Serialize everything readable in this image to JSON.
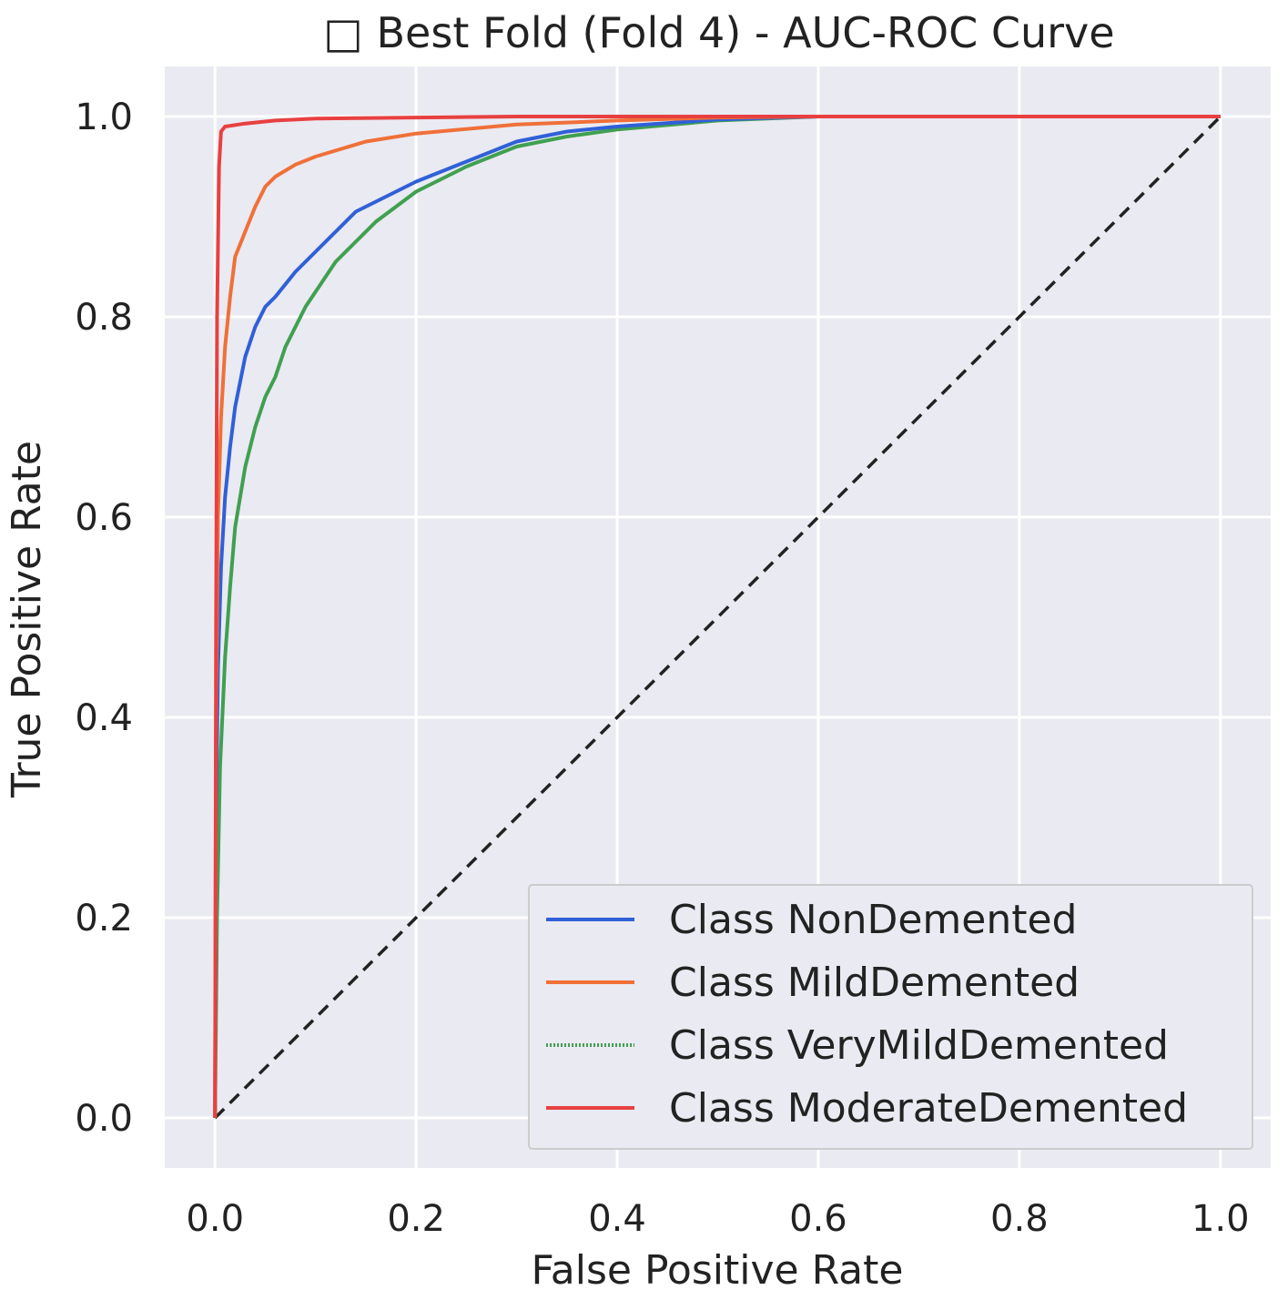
{
  "chart_data": {
    "type": "line",
    "title": "□ Best Fold (Fold 4) - AUC-ROC Curve",
    "xlabel": "False Positive Rate",
    "ylabel": "True Positive Rate",
    "xlim": [
      -0.05,
      1.05
    ],
    "ylim": [
      -0.05,
      1.05
    ],
    "xticks": [
      0.0,
      0.2,
      0.4,
      0.6,
      0.8,
      1.0
    ],
    "xtick_labels": [
      "0.0",
      "0.2",
      "0.4",
      "0.6",
      "0.8",
      "1.0"
    ],
    "yticks": [
      0.0,
      0.2,
      0.4,
      0.6,
      0.8,
      1.0
    ],
    "ytick_labels": [
      "0.0",
      "0.2",
      "0.4",
      "0.6",
      "0.8",
      "1.0"
    ],
    "grid": true,
    "legend_position": "lower-right",
    "series": [
      {
        "name": "Class NonDemented",
        "color": "#3060d8",
        "style": "solid",
        "x": [
          0,
          0.001,
          0.003,
          0.006,
          0.01,
          0.015,
          0.02,
          0.03,
          0.04,
          0.05,
          0.06,
          0.08,
          0.1,
          0.12,
          0.14,
          0.16,
          0.18,
          0.2,
          0.25,
          0.3,
          0.35,
          0.4,
          0.5,
          0.6,
          0.8,
          1.0
        ],
        "y": [
          0,
          0.3,
          0.45,
          0.55,
          0.62,
          0.67,
          0.71,
          0.76,
          0.79,
          0.81,
          0.82,
          0.845,
          0.865,
          0.885,
          0.905,
          0.915,
          0.925,
          0.935,
          0.955,
          0.975,
          0.985,
          0.99,
          0.997,
          1.0,
          1.0,
          1.0
        ]
      },
      {
        "name": "Class MildDemented",
        "color": "#f07038",
        "style": "solid",
        "x": [
          0,
          0.001,
          0.003,
          0.006,
          0.01,
          0.015,
          0.02,
          0.03,
          0.04,
          0.05,
          0.06,
          0.08,
          0.1,
          0.15,
          0.2,
          0.3,
          0.4,
          0.5,
          0.6,
          0.8,
          1.0
        ],
        "y": [
          0,
          0.4,
          0.6,
          0.7,
          0.77,
          0.82,
          0.86,
          0.885,
          0.91,
          0.93,
          0.94,
          0.952,
          0.96,
          0.975,
          0.983,
          0.992,
          0.996,
          0.999,
          1.0,
          1.0,
          1.0
        ]
      },
      {
        "name": "Class VeryMildDemented",
        "color": "#40a050",
        "style": "dotted",
        "x": [
          0,
          0.002,
          0.005,
          0.01,
          0.015,
          0.02,
          0.03,
          0.04,
          0.05,
          0.06,
          0.07,
          0.08,
          0.09,
          0.1,
          0.12,
          0.14,
          0.16,
          0.18,
          0.2,
          0.25,
          0.3,
          0.35,
          0.4,
          0.5,
          0.6,
          0.8,
          1.0
        ],
        "y": [
          0,
          0.2,
          0.35,
          0.46,
          0.53,
          0.59,
          0.65,
          0.69,
          0.72,
          0.74,
          0.77,
          0.79,
          0.81,
          0.825,
          0.855,
          0.875,
          0.895,
          0.91,
          0.925,
          0.95,
          0.97,
          0.98,
          0.987,
          0.996,
          1.0,
          1.0,
          1.0
        ]
      },
      {
        "name": "Class ModerateDemented",
        "color": "#e84040",
        "style": "solid",
        "x": [
          0,
          0.001,
          0.002,
          0.004,
          0.006,
          0.01,
          0.03,
          0.06,
          0.1,
          0.2,
          0.3,
          0.5,
          1.0
        ],
        "y": [
          0,
          0.5,
          0.8,
          0.95,
          0.985,
          0.99,
          0.993,
          0.996,
          0.998,
          0.999,
          1.0,
          1.0,
          1.0
        ]
      }
    ],
    "reference_line": {
      "x": [
        0,
        1
      ],
      "y": [
        0,
        1
      ],
      "color": "#222222",
      "style": "dashed"
    }
  }
}
